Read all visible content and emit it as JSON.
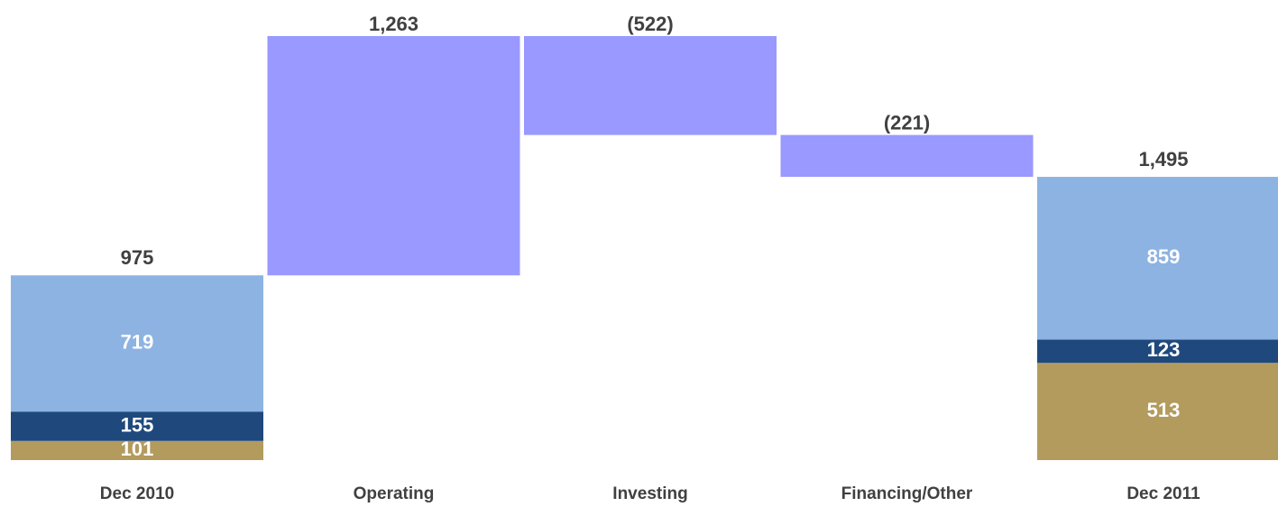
{
  "chart_data": {
    "type": "waterfall",
    "categories": [
      "Dec 2010",
      "Operating",
      "Investing",
      "Financing/Other",
      "Dec 2011"
    ],
    "segments": [
      {
        "color": "#b39b5e",
        "values": [
          101,
          null,
          null,
          null,
          513
        ]
      },
      {
        "color": "#1f497d",
        "values": [
          155,
          null,
          null,
          null,
          123
        ]
      },
      {
        "color": "#8db3e2",
        "values": [
          719,
          null,
          null,
          null,
          859
        ]
      }
    ],
    "totals": {
      "values": [
        975,
        null,
        null,
        null,
        1495
      ],
      "value_labels": [
        null,
        null,
        null,
        null,
        "1,495"
      ]
    },
    "changes": {
      "color": "#9999ff",
      "values": [
        null,
        1263,
        -522,
        -221,
        null
      ],
      "value_labels": [
        null,
        "1,263",
        "(522)",
        "(221)",
        null
      ]
    }
  }
}
